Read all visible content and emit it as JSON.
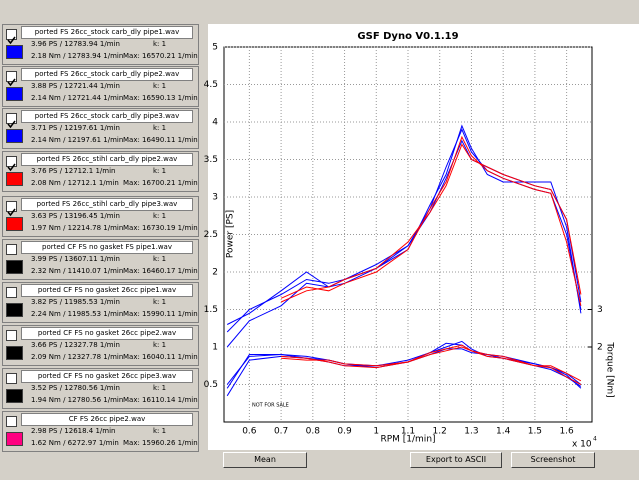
{
  "files": [
    {
      "name": "ported FS 26cc_stock carb_dly pipe1.wav",
      "color": "#0000ff",
      "checked": true,
      "power": "3.96 PS / 12783.94 1/min",
      "torque": "2.18 Nm / 12783.94 1/min",
      "k": "k: 1",
      "max": "Max: 16570.21 1/min"
    },
    {
      "name": "ported FS 26cc_stock carb_dly pipe2.wav",
      "color": "#0000ff",
      "checked": true,
      "power": "3.88 PS / 12721.44 1/min",
      "torque": "2.14 Nm / 12721.44 1/min",
      "k": "k: 1",
      "max": "Max: 16590.13 1/min"
    },
    {
      "name": "ported FS 26cc_stock carb_dly pipe3.wav",
      "color": "#0000ff",
      "checked": true,
      "power": "3.71 PS / 12197.61 1/min",
      "torque": "2.14 Nm / 12197.61 1/min",
      "k": "k: 1",
      "max": "Max: 16490.11 1/min"
    },
    {
      "name": "ported FS 26cc_stihl carb_dly pipe2.wav",
      "color": "#ff0000",
      "checked": true,
      "power": "3.76 PS / 12712.1 1/min",
      "torque": "2.08 Nm / 12712.1 1/min",
      "k": "k: 1",
      "max": "Max: 16700.21 1/min"
    },
    {
      "name": "ported FS 26cc_stihl carb_dly pipe3.wav",
      "color": "#ff0000",
      "checked": true,
      "power": "3.63 PS / 13196.45 1/min",
      "torque": "1.97 Nm / 12214.78 1/min",
      "k": "k: 1",
      "max": "Max: 16730.19 1/min"
    },
    {
      "name": "ported CF FS no gasket  FS pipe1.wav",
      "color": "#000000",
      "checked": false,
      "power": "3.99 PS / 13607.11 1/min",
      "torque": "2.32 Nm / 11410.07 1/min",
      "k": "k: 1",
      "max": "Max: 16460.17 1/min"
    },
    {
      "name": "ported CF FS no gasket 26cc  pipe1.wav",
      "color": "#000000",
      "checked": false,
      "power": "3.82 PS / 11985.53 1/min",
      "torque": "2.24 Nm / 11985.53 1/min",
      "k": "k: 1",
      "max": "Max: 15990.11 1/min"
    },
    {
      "name": "ported CF FS no gasket 26cc pipe2.wav",
      "color": "#000000",
      "checked": false,
      "power": "3.66 PS / 12327.78 1/min",
      "torque": "2.09 Nm / 12327.78 1/min",
      "k": "k: 1",
      "max": "Max: 16040.11 1/min"
    },
    {
      "name": "ported CF FS no gasket 26cc pipe3.wav",
      "color": "#000000",
      "checked": false,
      "power": "3.52 PS / 12780.56 1/min",
      "torque": "1.94 Nm / 12780.56 1/min",
      "k": "k: 1",
      "max": "Max: 16110.14 1/min"
    },
    {
      "name": "CF FS 26cc  pipe2.wav",
      "color": "#ff0080",
      "checked": false,
      "power": "2.98 PS / 12618.4 1/min",
      "torque": "1.62 Nm / 6272.97 1/min",
      "k": "k: 1",
      "max": "Max: 15960.26 1/min"
    }
  ],
  "buttons": [
    "Mean",
    "Export to ASCII",
    "Screenshot"
  ],
  "chart_data": {
    "type": "line",
    "title": "GSF Dyno V0.1.19",
    "x_label": "RPM [1/min]",
    "y_label": "Power [PS]",
    "y2_label": "Torque [Nm]",
    "x_multiplier": {
      "base": "x 10",
      "exponent": "4"
    },
    "annotation": "NOT FOR SALE",
    "grid": true,
    "xlim": [
      0.52,
      1.68
    ],
    "xticks": [
      0.6,
      0.7,
      0.8,
      0.9,
      1,
      1.1,
      1.2,
      1.3,
      1.4,
      1.5,
      1.6
    ],
    "ylim": [
      0,
      5
    ],
    "yticks": [
      0.5,
      1,
      1.5,
      2,
      2.5,
      3,
      3.5,
      4,
      4.5,
      5
    ],
    "y2lim": [
      0,
      10
    ],
    "y2ticks": [
      2,
      3
    ],
    "x": [
      0.53,
      0.6,
      0.7,
      0.78,
      0.85,
      0.9,
      1,
      1.1,
      1.17,
      1.22,
      1.27,
      1.3,
      1.35,
      1.4,
      1.5,
      1.55,
      1.6,
      1.645
    ],
    "series": [
      {
        "color": "#0000ff",
        "values": [
          1.3,
          1.45,
          1.75,
          2.0,
          1.8,
          1.85,
          2.05,
          2.3,
          2.9,
          3.3,
          3.95,
          3.65,
          3.3,
          3.2,
          3.2,
          3.2,
          2.6,
          1.45
        ]
      },
      {
        "color": "#0000ff",
        "values": [
          1.2,
          1.5,
          1.7,
          1.9,
          1.85,
          1.9,
          2.1,
          2.35,
          2.85,
          3.4,
          3.9,
          3.6,
          3.35,
          3.25,
          3.1,
          3.05,
          2.5,
          1.5
        ]
      },
      {
        "color": "#0000ff",
        "values": [
          1.0,
          1.35,
          1.55,
          1.85,
          1.8,
          1.9,
          2.05,
          2.35,
          2.8,
          3.25,
          3.75,
          3.5,
          3.4,
          3.3,
          3.15,
          3.1,
          2.7,
          1.6
        ]
      },
      {
        "color": "#ff0000",
        "values": [
          null,
          null,
          1.65,
          1.8,
          1.75,
          1.85,
          2.0,
          2.3,
          2.85,
          3.2,
          3.8,
          3.55,
          3.35,
          3.25,
          3.1,
          3.05,
          2.4,
          1.55
        ]
      },
      {
        "color": "#ff0000",
        "values": [
          null,
          null,
          1.6,
          1.75,
          1.8,
          1.9,
          2.05,
          2.4,
          2.8,
          3.15,
          3.7,
          3.5,
          3.4,
          3.3,
          3.15,
          3.1,
          2.7,
          1.7
        ]
      },
      {
        "color": "#0000ff",
        "axis": "y2",
        "values": [
          0.9,
          1.8,
          1.8,
          1.75,
          1.65,
          1.55,
          1.45,
          1.6,
          1.85,
          2.0,
          2.15,
          1.95,
          1.75,
          1.7,
          1.55,
          1.45,
          1.25,
          0.9
        ]
      },
      {
        "color": "#0000ff",
        "axis": "y2",
        "values": [
          1.0,
          1.75,
          1.8,
          1.7,
          1.6,
          1.5,
          1.5,
          1.65,
          1.85,
          2.1,
          2.05,
          1.9,
          1.8,
          1.7,
          1.5,
          1.4,
          1.2,
          0.95
        ]
      },
      {
        "color": "#0000ff",
        "axis": "y2",
        "values": [
          0.7,
          1.65,
          1.75,
          1.7,
          1.65,
          1.55,
          1.5,
          1.6,
          1.8,
          1.95,
          1.95,
          1.85,
          1.8,
          1.75,
          1.55,
          1.45,
          1.3,
          1.0
        ]
      },
      {
        "color": "#ff0000",
        "axis": "y2",
        "values": [
          null,
          null,
          1.75,
          1.7,
          1.6,
          1.5,
          1.45,
          1.6,
          1.85,
          1.95,
          2.05,
          1.9,
          1.75,
          1.7,
          1.5,
          1.45,
          1.2,
          1.0
        ]
      },
      {
        "color": "#ff0000",
        "axis": "y2",
        "values": [
          null,
          null,
          1.7,
          1.65,
          1.65,
          1.55,
          1.5,
          1.6,
          1.8,
          1.9,
          2.0,
          1.9,
          1.8,
          1.75,
          1.5,
          1.5,
          1.3,
          1.1
        ]
      }
    ]
  }
}
